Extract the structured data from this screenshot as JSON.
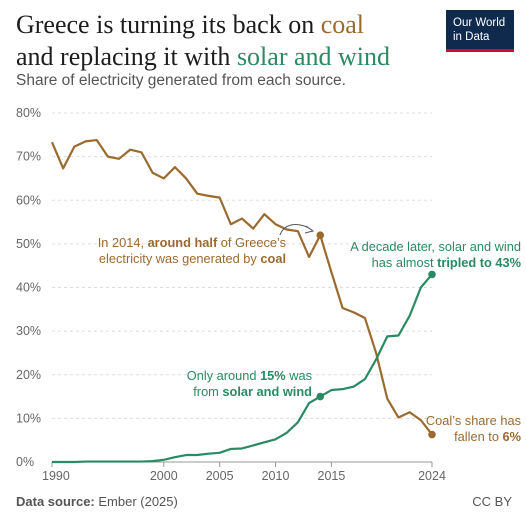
{
  "header": {
    "title_part1": "Greece is turning its back on ",
    "title_coal": "coal",
    "title_part2": "and replacing it with ",
    "title_solar": "solar and wind",
    "subtitle": "Share of electricity generated from each source."
  },
  "logo": {
    "line1": "Our World",
    "line2": "in Data"
  },
  "footer": {
    "source_label": "Data source:",
    "source_value": " Ember (2025)",
    "license": "CC BY"
  },
  "colors": {
    "coal": "#9a6a2f",
    "solar_wind": "#2a8a63",
    "grid": "#dddddd",
    "annotation_arrow": "#555555"
  },
  "chart_data": {
    "type": "line",
    "title": "Greece is turning its back on coal and replacing it with solar and wind",
    "subtitle": "Share of electricity generated from each source.",
    "xlabel": "",
    "ylabel": "",
    "xlim": [
      1990,
      2024
    ],
    "ylim": [
      0,
      80
    ],
    "x_ticks": [
      1990,
      2000,
      2005,
      2010,
      2015,
      2024
    ],
    "y_ticks": [
      0,
      10,
      20,
      30,
      40,
      50,
      60,
      70,
      80
    ],
    "y_tick_labels": [
      "0%",
      "10%",
      "20%",
      "30%",
      "40%",
      "50%",
      "60%",
      "70%",
      "80%"
    ],
    "grid": true,
    "x": [
      1990,
      1991,
      1992,
      1993,
      1994,
      1995,
      1996,
      1997,
      1998,
      1999,
      2000,
      2001,
      2002,
      2003,
      2004,
      2005,
      2006,
      2007,
      2008,
      2009,
      2010,
      2011,
      2012,
      2013,
      2014,
      2015,
      2016,
      2017,
      2018,
      2019,
      2020,
      2021,
      2022,
      2023,
      2024
    ],
    "series": [
      {
        "name": "coal",
        "color": "#9a6a2f",
        "values": [
          73.3,
          67.3,
          72.3,
          73.5,
          73.8,
          70.0,
          69.5,
          71.6,
          71.0,
          66.3,
          65.0,
          67.6,
          65.0,
          61.5,
          61.0,
          60.6,
          54.5,
          55.8,
          53.5,
          56.8,
          54.5,
          53.3,
          52.9,
          47.0,
          52.0,
          43.5,
          35.3,
          34.3,
          33.0,
          25.0,
          14.5,
          10.2,
          11.4,
          9.6,
          6.3
        ]
      },
      {
        "name": "solar and wind",
        "color": "#2a8a63",
        "values": [
          0,
          0,
          0,
          0.1,
          0.1,
          0.1,
          0.1,
          0.1,
          0.1,
          0.2,
          0.5,
          1.1,
          1.6,
          1.6,
          1.9,
          2.1,
          3.0,
          3.1,
          3.8,
          4.5,
          5.2,
          6.7,
          9.1,
          13.5,
          15.0,
          16.5,
          16.7,
          17.3,
          19.0,
          23.5,
          28.8,
          29.0,
          33.5,
          40.0,
          43.0
        ]
      }
    ],
    "highlight_points": [
      {
        "series": "coal",
        "x": 2014,
        "y": 52.0
      },
      {
        "series": "coal",
        "x": 2024,
        "y": 6.3
      },
      {
        "series": "solar and wind",
        "x": 2014,
        "y": 15.0
      },
      {
        "series": "solar and wind",
        "x": 2024,
        "y": 43.0
      }
    ],
    "annotations": {
      "coal_2014": {
        "line1_a": "In 2014, ",
        "line1_b": "around half",
        "line1_c": " of Greece’s",
        "line2_a": "electricity was generated by ",
        "line2_b": "coal"
      },
      "sw_2014": {
        "line1_a": "Only around ",
        "line1_b": "15%",
        "line1_c": " was",
        "line2_a": "from ",
        "line2_b": "solar and wind"
      },
      "sw_2024": {
        "line1": "A decade later, solar and wind",
        "line2_a": "has almost ",
        "line2_b": "tripled to 43%"
      },
      "coal_2024": {
        "line1": "Coal’s share has",
        "line2_a": "fallen to ",
        "line2_b": "6%"
      }
    }
  }
}
